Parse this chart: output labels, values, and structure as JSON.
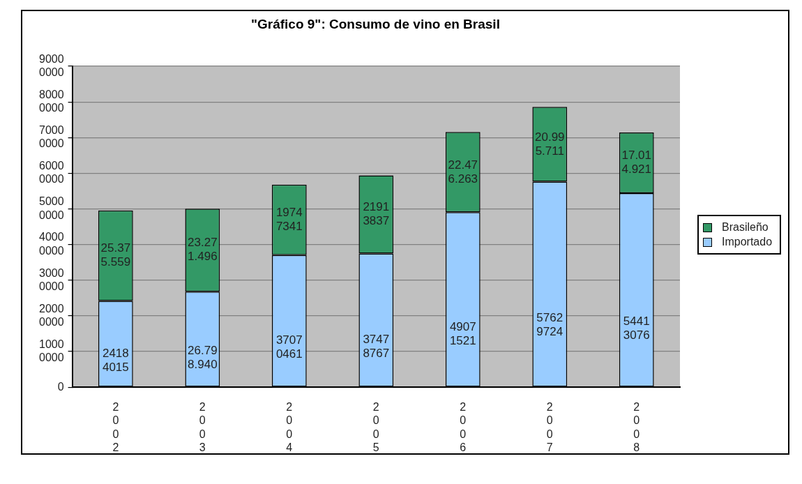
{
  "chart_data": {
    "type": "bar",
    "title": "\"Gráfico 9\": Consumo de vino en Brasil",
    "categories": [
      "2002",
      "2003",
      "2004",
      "2005",
      "2006",
      "2007",
      "2008"
    ],
    "stacked": true,
    "ylim": [
      0,
      90000000
    ],
    "yticks": [
      0,
      10000000,
      20000000,
      30000000,
      40000000,
      50000000,
      60000000,
      70000000,
      80000000,
      90000000
    ],
    "grid": "y",
    "legend": "right",
    "series": [
      {
        "name": "Importado",
        "color": "#99ccff",
        "values": [
          24184015,
          26798940,
          37070461,
          37478767,
          49071521,
          57629724,
          54413076
        ],
        "value_labels": [
          "24184015",
          "26.798.940",
          "37070461",
          "37478767",
          "49071521",
          "57629724",
          "54413076"
        ]
      },
      {
        "name": "Brasileño",
        "color": "#339966",
        "values": [
          25375559,
          23271496,
          19747341,
          21913837,
          22476263,
          20995711,
          17014921
        ],
        "value_labels": [
          "25.375.559",
          "23.271.496",
          "19747341",
          "21913837",
          "22.476.263",
          "20.995.711",
          "17.014.921"
        ]
      }
    ]
  }
}
